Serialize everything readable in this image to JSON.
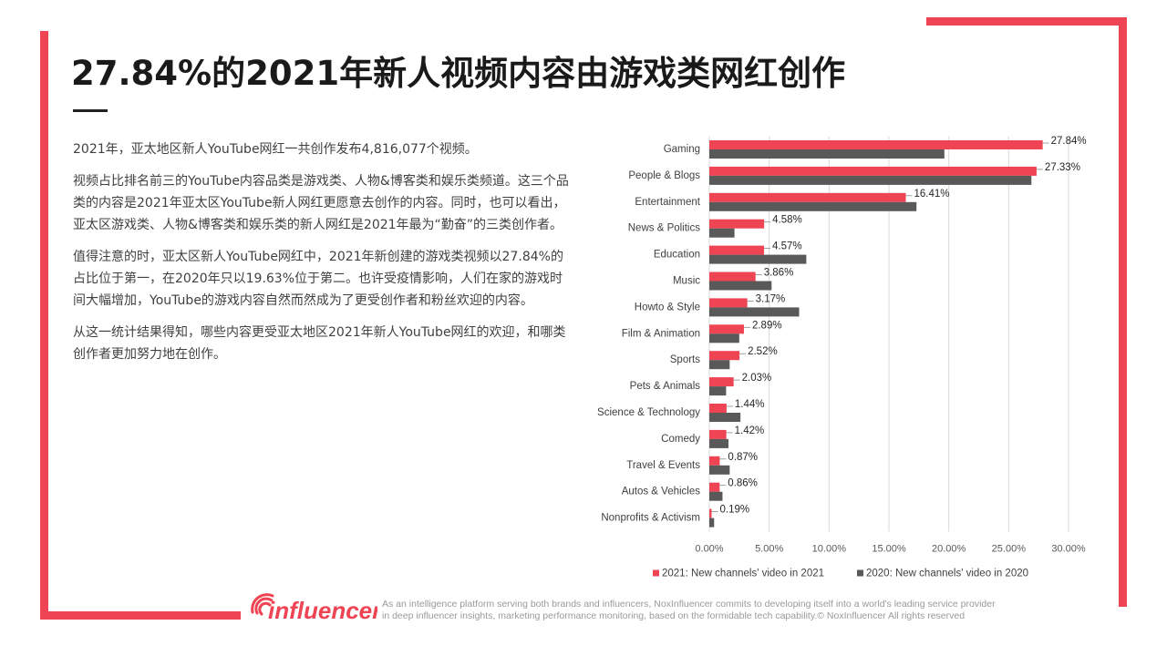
{
  "title": "27.84%的2021年新人视频内容由游戏类网红创作",
  "paragraphs": [
    "2021年，亚太地区新人YouTube网红一共创作发布4,816,077个视频。",
    "视频占比排名前三的YouTube内容品类是游戏类、人物&博客类和娱乐类频道。这三个品类的内容是2021年亚太区YouTube新人网红更愿意去创作的内容。同时，也可以看出，亚太区游戏类、人物&博客类和娱乐类的新人网红是2021年最为“勤奋”的三类创作者。",
    "值得注意的时，亚太区新人YouTube网红中，2021年新创建的游戏类视频以27.84%的占比位于第一，在2020年只以19.63%位于第二。也许受疫情影响，人们在家的游戏时间大幅增加，YouTube的游戏内容自然而然成为了更受创作者和粉丝欢迎的内容。",
    "从这一统计结果得知，哪些内容更受亚太地区2021年新人YouTube网红的欢迎，和哪类创作者更加努力地在创作。"
  ],
  "chart_data": {
    "type": "bar",
    "orientation": "horizontal",
    "categories": [
      "Gaming",
      "People & Blogs",
      "Entertainment",
      "News & Politics",
      "Education",
      "Music",
      "Howto & Style",
      "Film & Animation",
      "Sports",
      "Pets & Animals",
      "Science & Technology",
      "Comedy",
      "Travel & Events",
      "Autos & Vehicles",
      "Nonprofits & Activism"
    ],
    "series": [
      {
        "name": "2021: New channels' video in 2021",
        "color": "#ee4453",
        "values": [
          27.84,
          27.33,
          16.41,
          4.58,
          4.57,
          3.86,
          3.17,
          2.89,
          2.52,
          2.03,
          1.44,
          1.42,
          0.87,
          0.86,
          0.19
        ],
        "labels": [
          "27.84%",
          "27.33%",
          "16.41%",
          "4.58%",
          "4.57%",
          "3.86%",
          "3.17%",
          "2.89%",
          "2.52%",
          "2.03%",
          "1.44%",
          "1.42%",
          "0.87%",
          "0.86%",
          "0.19%"
        ]
      },
      {
        "name": "2020: New channels' video in 2020",
        "color": "#595959",
        "values": [
          19.63,
          26.9,
          17.3,
          2.1,
          8.1,
          5.2,
          7.5,
          2.5,
          1.7,
          1.4,
          2.6,
          1.6,
          1.7,
          1.1,
          0.4
        ]
      }
    ],
    "xlim": [
      0,
      30
    ],
    "xticks": [
      "0.00%",
      "5.00%",
      "10.00%",
      "15.00%",
      "20.00%",
      "25.00%",
      "30.00%"
    ],
    "grid": true,
    "legend_position": "bottom"
  },
  "logo_text": "influencer",
  "footer": [
    "As an intelligence platform serving both brands and influencers, NoxInfluencer commits to developing itself into a world's leading service provider",
    "in deep influencer insights, marketing performance monitoring, based on the formidable tech capability.© NoxInfluencer All rights reserved"
  ]
}
